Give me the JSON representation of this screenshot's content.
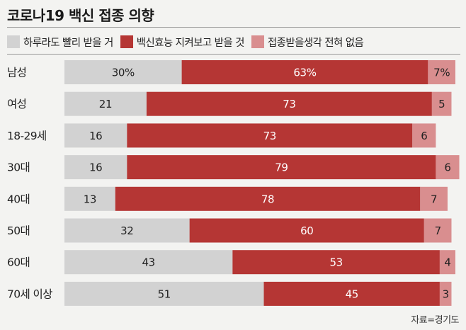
{
  "title": "코로나19 백신 접종 의향",
  "source": "자료=경기도",
  "colors": {
    "background": "#f3f3f1",
    "seg1": "#d2d2d2",
    "seg2": "#b53634",
    "seg3": "#d98e8f"
  },
  "legend": [
    {
      "label": "하루라도 빨리 받을 거",
      "color": "#d2d2d2"
    },
    {
      "label": "백신효능 지켜보고 받을 것",
      "color": "#b53634"
    },
    {
      "label": "접종받을생각 전혀 없음",
      "color": "#d98e8f"
    }
  ],
  "chart_data": {
    "type": "bar",
    "orientation": "horizontal",
    "stacked": true,
    "unit": "%",
    "categories": [
      "남성",
      "여성",
      "18-29세",
      "30대",
      "40대",
      "50대",
      "60대",
      "70세 이상"
    ],
    "series": [
      {
        "name": "하루라도 빨리 받을 거",
        "values": [
          30,
          21,
          16,
          16,
          13,
          32,
          43,
          51
        ]
      },
      {
        "name": "백신효능 지켜보고 받을 것",
        "values": [
          63,
          73,
          73,
          79,
          78,
          60,
          53,
          45
        ]
      },
      {
        "name": "접종받을생각 전혀 없음",
        "values": [
          7,
          5,
          6,
          6,
          7,
          7,
          4,
          3
        ]
      }
    ],
    "data_labels": [
      [
        "30%",
        "63%",
        "7%"
      ],
      [
        "21",
        "73",
        "5"
      ],
      [
        "16",
        "73",
        "6"
      ],
      [
        "16",
        "79",
        "6"
      ],
      [
        "13",
        "78",
        "7"
      ],
      [
        "32",
        "60",
        "7"
      ],
      [
        "43",
        "53",
        "4"
      ],
      [
        "51",
        "45",
        "3"
      ]
    ],
    "xlim": [
      0,
      100
    ],
    "legend_position": "top",
    "grid": false
  }
}
